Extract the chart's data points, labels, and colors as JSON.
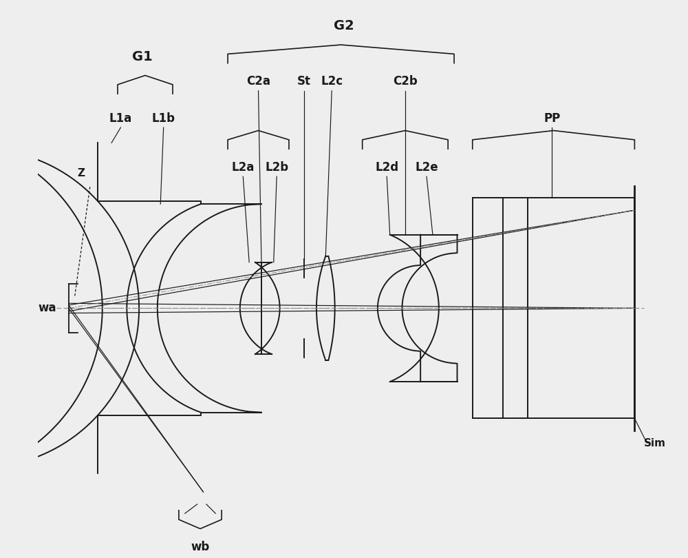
{
  "bg_color": "#eeeeee",
  "line_color": "#1a1a1a",
  "fig_width": 10.0,
  "fig_height": 8.1,
  "xlim": [
    0,
    100
  ],
  "ylim": [
    -40,
    50
  ]
}
